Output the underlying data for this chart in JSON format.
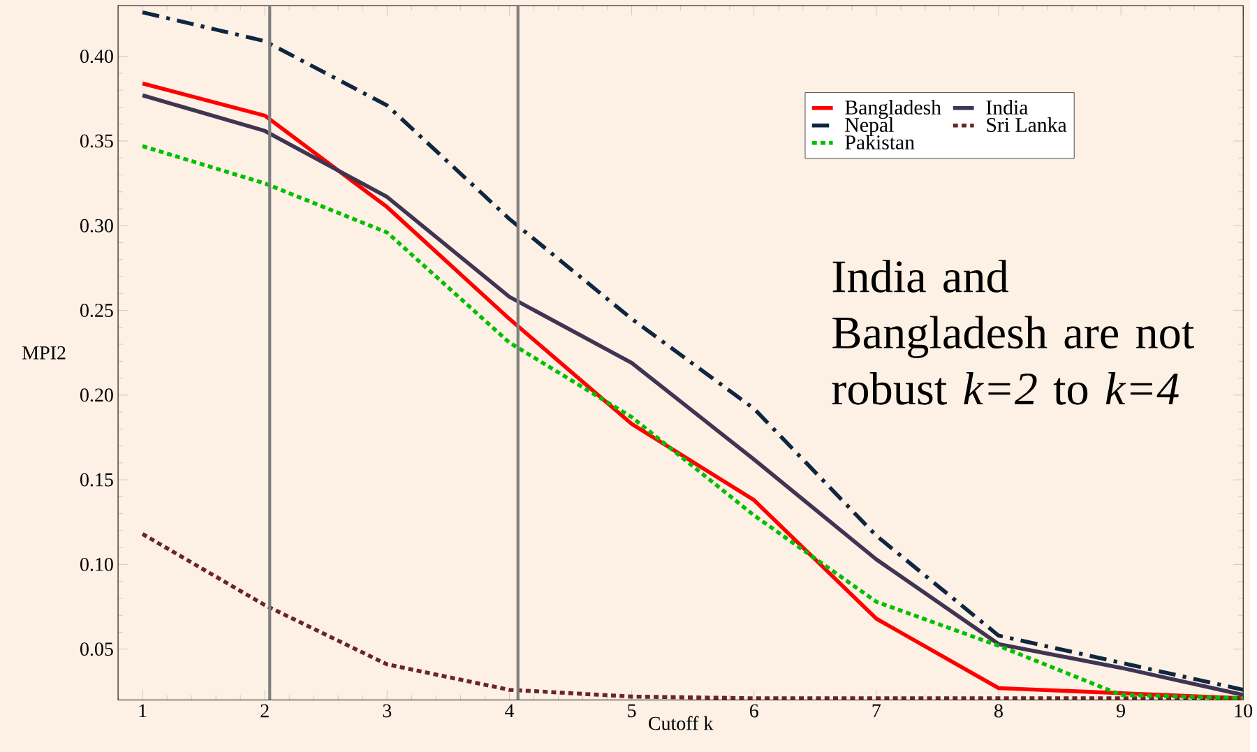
{
  "chart_data": {
    "type": "line",
    "xlabel": "Cutoff k",
    "ylabel": "MPI2",
    "x": [
      1,
      2,
      3,
      4,
      5,
      6,
      7,
      8,
      9,
      10
    ],
    "series": [
      {
        "name": "Bangladesh",
        "color": "#ff0000",
        "line_style": "solid",
        "values": [
          0.384,
          0.365,
          0.311,
          0.245,
          0.183,
          0.138,
          0.068,
          0.027,
          0.024,
          0.021
        ]
      },
      {
        "name": "India",
        "color": "#3f3553",
        "line_style": "solid",
        "values": [
          0.377,
          0.356,
          0.317,
          0.258,
          0.219,
          0.162,
          0.103,
          0.053,
          0.039,
          0.023
        ]
      },
      {
        "name": "Nepal",
        "color": "#0f2641",
        "line_style": "dashdot",
        "values": [
          0.426,
          0.409,
          0.371,
          0.304,
          0.245,
          0.192,
          0.117,
          0.058,
          0.042,
          0.026
        ]
      },
      {
        "name": "Sri Lanka",
        "color": "#6b2525",
        "line_style": "dotted",
        "values": [
          0.118,
          0.076,
          0.041,
          0.026,
          0.022,
          0.021,
          0.021,
          0.021,
          0.021,
          0.021
        ]
      },
      {
        "name": "Pakistan",
        "color": "#00c000",
        "line_style": "dotted",
        "values": [
          0.347,
          0.325,
          0.296,
          0.231,
          0.187,
          0.129,
          0.078,
          0.052,
          0.023,
          0.021
        ]
      }
    ],
    "xlim": [
      0.8,
      10
    ],
    "ylim": [
      0.02,
      0.43
    ],
    "xticks": [
      1,
      2,
      3,
      4,
      5,
      6,
      7,
      8,
      9,
      10
    ],
    "yticks": [
      {
        "value": 0.05,
        "label": "0.05"
      },
      {
        "value": 0.1,
        "label": "0.10"
      },
      {
        "value": 0.15,
        "label": "0.15"
      },
      {
        "value": 0.2,
        "label": "0.20"
      },
      {
        "value": 0.25,
        "label": "0.25"
      },
      {
        "value": 0.3,
        "label": "0.30"
      },
      {
        "value": 0.35,
        "label": "0.35"
      },
      {
        "value": 0.4,
        "label": "0.40"
      }
    ],
    "ref_lines": [
      {
        "axis": "x",
        "value": 2.04,
        "color": "#808080"
      },
      {
        "axis": "x",
        "value": 4.07,
        "color": "#808080"
      }
    ],
    "annotations": [
      "India and Bangladesh are not robust *k=2* to *k=4*"
    ],
    "legend": "top right",
    "grid": false,
    "marker": "none"
  }
}
